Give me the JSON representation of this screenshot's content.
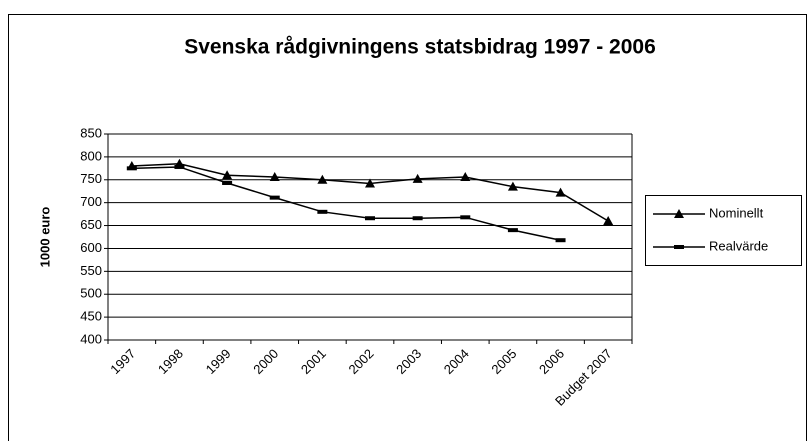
{
  "chart_data": {
    "type": "line",
    "title": "Svenska rådgivningens statsbidrag 1997 - 2006",
    "y_label": "1000 euro",
    "categories": [
      "1997",
      "1998",
      "1999",
      "2000",
      "2001",
      "2002",
      "2003",
      "2004",
      "2005",
      "2006",
      "Budget 2007"
    ],
    "series": [
      {
        "name": "Nominellt",
        "color": "#000000",
        "marker": "triangle",
        "values": [
          780,
          785,
          760,
          756,
          750,
          742,
          752,
          756,
          735,
          722,
          660
        ]
      },
      {
        "name": "Realvärde",
        "color": "#000000",
        "marker": "dash",
        "values": [
          775,
          778,
          743,
          711,
          680,
          666,
          666,
          668,
          640,
          618,
          null
        ]
      }
    ],
    "ylim": [
      400,
      850
    ],
    "yticks": [
      400,
      450,
      500,
      550,
      600,
      650,
      700,
      750,
      800,
      850
    ],
    "grid": true,
    "legend": "right"
  }
}
